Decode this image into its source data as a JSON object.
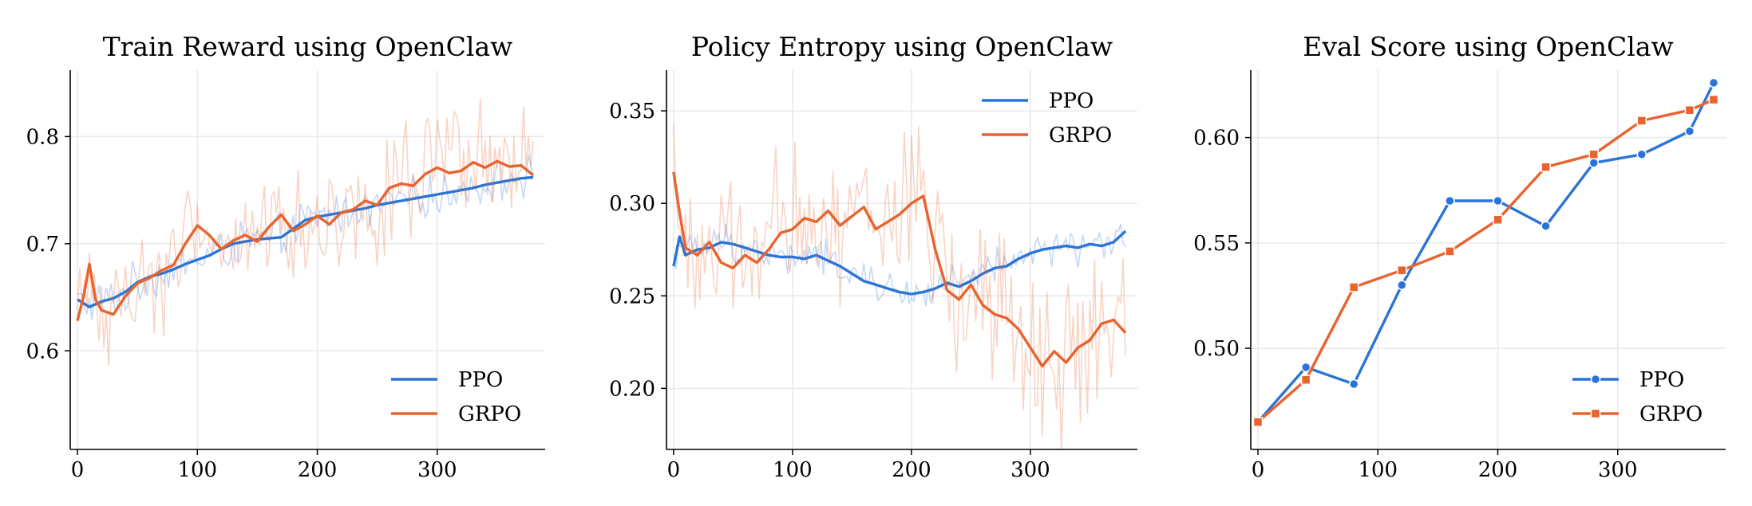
{
  "colors": {
    "ppo": "#2a74d8",
    "grpo": "#e8642f",
    "grid": "#e9e9e9",
    "axis": "#000000"
  },
  "chart_data": [
    {
      "type": "line",
      "title": "Train Reward using OpenClaw",
      "xlabel": "",
      "ylabel": "",
      "xlim": [
        -6,
        390
      ],
      "ylim": [
        0.508,
        0.862
      ],
      "xticks": [
        0,
        100,
        200,
        300
      ],
      "yticks": [
        0.6,
        0.7,
        0.8
      ],
      "tick_labels_y": [
        "0.6",
        "0.7",
        "0.8"
      ],
      "grid": true,
      "legend": "lower-right",
      "legend_markers": false,
      "series": [
        {
          "name": "PPO",
          "color_key": "ppo",
          "x": [
            0,
            10,
            20,
            30,
            40,
            50,
            60,
            70,
            80,
            90,
            100,
            110,
            120,
            130,
            140,
            150,
            160,
            170,
            180,
            190,
            200,
            210,
            220,
            230,
            240,
            250,
            260,
            270,
            280,
            290,
            300,
            310,
            320,
            330,
            340,
            350,
            360,
            370,
            380
          ],
          "y": [
            0.648,
            0.641,
            0.646,
            0.649,
            0.655,
            0.664,
            0.669,
            0.672,
            0.676,
            0.681,
            0.685,
            0.689,
            0.695,
            0.7,
            0.702,
            0.704,
            0.705,
            0.706,
            0.714,
            0.722,
            0.725,
            0.727,
            0.729,
            0.731,
            0.733,
            0.736,
            0.738,
            0.74,
            0.742,
            0.744,
            0.746,
            0.748,
            0.75,
            0.752,
            0.755,
            0.757,
            0.759,
            0.761,
            0.762
          ],
          "raw_noise": 0.02
        },
        {
          "name": "GRPO",
          "color_key": "grpo",
          "x": [
            0,
            5,
            10,
            15,
            20,
            30,
            40,
            50,
            60,
            70,
            80,
            90,
            100,
            110,
            120,
            130,
            140,
            150,
            160,
            170,
            180,
            190,
            200,
            210,
            220,
            230,
            240,
            250,
            260,
            270,
            280,
            290,
            300,
            310,
            320,
            330,
            340,
            350,
            360,
            370,
            380
          ],
          "y": [
            0.628,
            0.65,
            0.681,
            0.648,
            0.638,
            0.634,
            0.651,
            0.663,
            0.668,
            0.675,
            0.68,
            0.7,
            0.717,
            0.708,
            0.695,
            0.703,
            0.708,
            0.702,
            0.716,
            0.727,
            0.712,
            0.718,
            0.726,
            0.718,
            0.729,
            0.732,
            0.74,
            0.736,
            0.752,
            0.756,
            0.754,
            0.765,
            0.771,
            0.766,
            0.768,
            0.776,
            0.771,
            0.777,
            0.772,
            0.773,
            0.764
          ],
          "raw_noise": 0.055
        }
      ]
    },
    {
      "type": "line",
      "title": "Policy Entropy using OpenClaw",
      "xlabel": "",
      "ylabel": "",
      "xlim": [
        -6,
        390
      ],
      "ylim": [
        0.167,
        0.372
      ],
      "xticks": [
        0,
        100,
        200,
        300
      ],
      "yticks": [
        0.2,
        0.25,
        0.3,
        0.35
      ],
      "tick_labels_y": [
        "0.20",
        "0.25",
        "0.30",
        "0.35"
      ],
      "grid": true,
      "legend": "top-right",
      "legend_markers": false,
      "series": [
        {
          "name": "PPO",
          "color_key": "ppo",
          "x": [
            0,
            5,
            10,
            20,
            30,
            40,
            50,
            60,
            70,
            80,
            90,
            100,
            110,
            120,
            130,
            140,
            150,
            160,
            170,
            180,
            190,
            200,
            210,
            220,
            230,
            240,
            250,
            260,
            270,
            280,
            290,
            300,
            310,
            320,
            330,
            340,
            350,
            360,
            370,
            380
          ],
          "y": [
            0.266,
            0.282,
            0.272,
            0.275,
            0.276,
            0.279,
            0.278,
            0.276,
            0.274,
            0.272,
            0.271,
            0.271,
            0.27,
            0.272,
            0.269,
            0.266,
            0.262,
            0.258,
            0.256,
            0.254,
            0.252,
            0.251,
            0.252,
            0.254,
            0.257,
            0.255,
            0.258,
            0.262,
            0.265,
            0.266,
            0.27,
            0.273,
            0.275,
            0.276,
            0.277,
            0.276,
            0.278,
            0.277,
            0.279,
            0.285
          ],
          "raw_noise": 0.01
        },
        {
          "name": "GRPO",
          "color_key": "grpo",
          "x": [
            0,
            5,
            10,
            20,
            30,
            40,
            50,
            60,
            70,
            80,
            90,
            100,
            110,
            120,
            130,
            140,
            150,
            160,
            170,
            180,
            190,
            200,
            210,
            220,
            230,
            240,
            250,
            260,
            270,
            280,
            290,
            300,
            310,
            320,
            330,
            340,
            350,
            360,
            370,
            380
          ],
          "y": [
            0.317,
            0.295,
            0.276,
            0.272,
            0.279,
            0.268,
            0.265,
            0.272,
            0.268,
            0.275,
            0.284,
            0.286,
            0.292,
            0.29,
            0.296,
            0.288,
            0.293,
            0.298,
            0.286,
            0.29,
            0.294,
            0.3,
            0.304,
            0.275,
            0.253,
            0.248,
            0.256,
            0.245,
            0.24,
            0.238,
            0.232,
            0.222,
            0.212,
            0.22,
            0.214,
            0.222,
            0.226,
            0.235,
            0.237,
            0.23
          ],
          "raw_noise": 0.045
        }
      ]
    },
    {
      "type": "line",
      "title": "Eval Score using OpenClaw",
      "xlabel": "",
      "ylabel": "",
      "xlim": [
        -6,
        390
      ],
      "ylim": [
        0.452,
        0.632
      ],
      "xticks": [
        0,
        100,
        200,
        300
      ],
      "yticks": [
        0.5,
        0.55,
        0.6
      ],
      "tick_labels_y": [
        "0.50",
        "0.55",
        "0.60"
      ],
      "grid": true,
      "legend": "lower-right",
      "legend_markers": true,
      "series": [
        {
          "name": "PPO",
          "color_key": "ppo",
          "marker": "circle",
          "x": [
            0,
            40,
            80,
            120,
            160,
            200,
            240,
            280,
            320,
            360,
            380
          ],
          "y": [
            0.465,
            0.491,
            0.483,
            0.53,
            0.57,
            0.57,
            0.558,
            0.588,
            0.592,
            0.603,
            0.626
          ]
        },
        {
          "name": "GRPO",
          "color_key": "grpo",
          "marker": "square",
          "x": [
            0,
            40,
            80,
            120,
            160,
            200,
            240,
            280,
            320,
            360,
            380
          ],
          "y": [
            0.465,
            0.485,
            0.529,
            0.537,
            0.546,
            0.561,
            0.586,
            0.592,
            0.608,
            0.613,
            0.618
          ]
        }
      ]
    }
  ]
}
